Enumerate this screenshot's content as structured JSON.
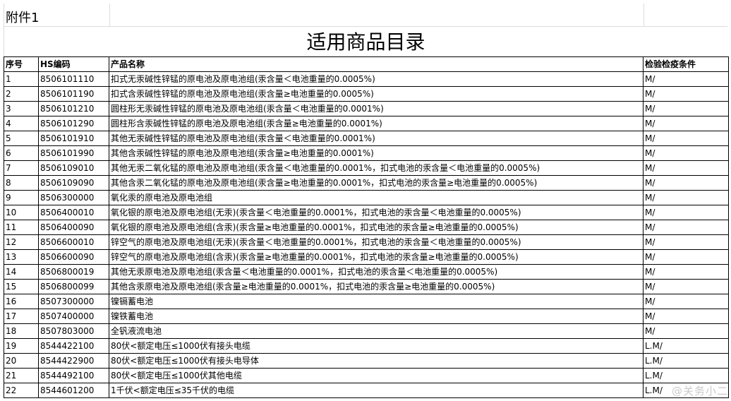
{
  "attachment_label": "附件1",
  "title": "适用商品目录",
  "columns": [
    "序号",
    "HS编码",
    "产品名称",
    "检验检疫条件"
  ],
  "rows": [
    [
      "1",
      "8506101110",
      "扣式无汞碱性锌锰的原电池及原电池组(汞含量＜电池重量的0.0005%)",
      "M/"
    ],
    [
      "2",
      "8506101190",
      "扣式含汞碱性锌锰的原电池及原电池组(汞含量≥电池重量的0.0005%)",
      "M/"
    ],
    [
      "3",
      "8506101210",
      "圆柱形无汞碱性锌锰的原电池及原电池组(汞含量＜电池重量的0.0001%)",
      "M/"
    ],
    [
      "4",
      "8506101290",
      "圆柱形含汞碱性锌锰的原电池及原电池组(汞含量≥电池重量的0.0001%)",
      "M/"
    ],
    [
      "5",
      "8506101910",
      "其他无汞碱性锌锰的原电池及原电池组(汞含量＜电池重量的0.0001%)",
      "M/"
    ],
    [
      "6",
      "8506101990",
      "其他含汞碱性锌锰的原电池及原电池组(汞含量≥电池重量的0.0001%)",
      "M/"
    ],
    [
      "7",
      "8506109010",
      "其他无汞二氧化锰的原电池及原电池组(汞含量＜电池重量的0.0001%，扣式电池的汞含量＜电池重量的0.0005%)",
      "M/"
    ],
    [
      "8",
      "8506109090",
      "其他含汞二氧化锰的原电池及原电池组(汞含量≥电池重量的0.0001%，扣式电池的汞含量≥电池重量的0.0005%)",
      "M/"
    ],
    [
      "9",
      "8506300000",
      "氧化汞的原电池及原电池组",
      "M/"
    ],
    [
      "10",
      "8506400010",
      "氧化银的原电池及原电池组(无汞)(汞含量＜电池重量的0.0001%，扣式电池的汞含量＜电池重量的0.0005%)",
      "M/"
    ],
    [
      "11",
      "8506400090",
      "氧化银的原电池及原电池组(含汞)(汞含量≥电池重量的0.0001%，扣式电池的汞含量≥电池重量的0.0005%)",
      "M/"
    ],
    [
      "12",
      "8506600010",
      "锌空气的原电池及原电池组(无汞)(汞含量＜电池重量的0.0001%，扣式电池的汞含量＜电池重量的0.0005%)",
      "M/"
    ],
    [
      "13",
      "8506600090",
      "锌空气的原电池及原电池组(含汞)(汞含量≥电池重量的0.0001%，扣式电池的汞含量≥电池重量的0.0005%)",
      "M/"
    ],
    [
      "14",
      "8506800019",
      "其他无汞原电池及原电池组(汞含量＜电池重量的0.0001%，扣式电池的汞含量＜电池重量的0.0005%)",
      "M/"
    ],
    [
      "15",
      "8506800099",
      "其他含汞原电池及原电池组(汞含量≥电池重量的0.0001%，扣式电池的汞含量≥电池重量的0.0005%)",
      "M/"
    ],
    [
      "16",
      "8507300000",
      "镍镉蓄电池",
      "M/"
    ],
    [
      "17",
      "8507400000",
      "镍铁蓄电池",
      "M/"
    ],
    [
      "18",
      "8507803000",
      "全钒液流电池",
      "M/"
    ],
    [
      "19",
      "8544422100",
      "80伏<额定电压≤1000伏有接头电缆",
      "L.M/"
    ],
    [
      "20",
      "8544422900",
      "80伏<额定电压≤1000伏有接头电导体",
      "L.M/"
    ],
    [
      "21",
      "8544492100",
      "80伏<额定电压≤1000伏其他电缆",
      "L.M/"
    ],
    [
      "22",
      "8544601200",
      "1千伏<额定电压≤35千伏的电缆",
      "L.M/"
    ]
  ],
  "watermark": "@关务小二"
}
